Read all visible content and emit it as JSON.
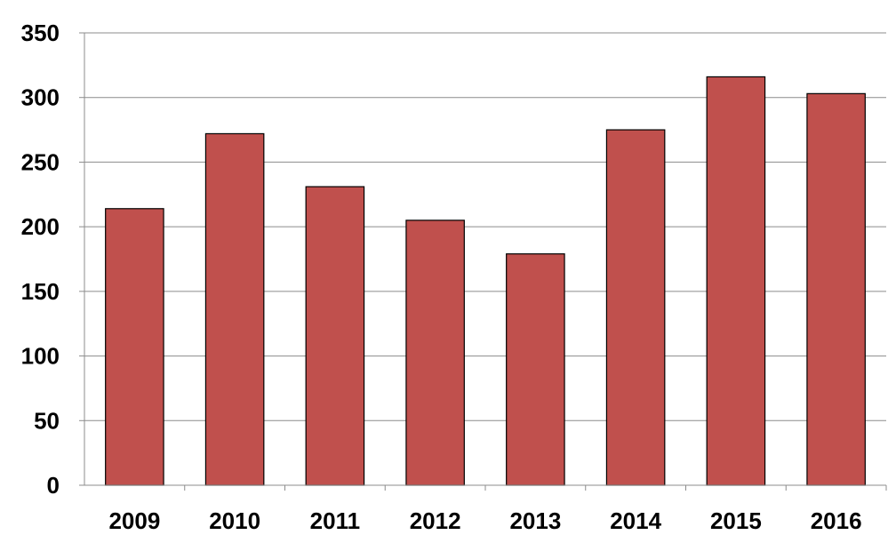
{
  "chart_data": {
    "type": "bar",
    "title": "",
    "xlabel": "",
    "ylabel": "",
    "categories": [
      "2009",
      "2010",
      "2011",
      "2012",
      "2013",
      "2014",
      "2015",
      "2016"
    ],
    "values": [
      214,
      272,
      231,
      205,
      179,
      275,
      316,
      303
    ],
    "ylim": [
      0,
      350
    ],
    "yticks": [
      0,
      50,
      100,
      150,
      200,
      250,
      300,
      350
    ],
    "ytick_labels": [
      "0",
      "50",
      "100",
      "150",
      "200",
      "250",
      "300",
      "350"
    ],
    "grid": true,
    "legend": "none",
    "colors": {
      "bar": "#c0504d",
      "bar_outline": "#000000",
      "gridline": "#8c8c8c",
      "text": "#000000"
    }
  }
}
